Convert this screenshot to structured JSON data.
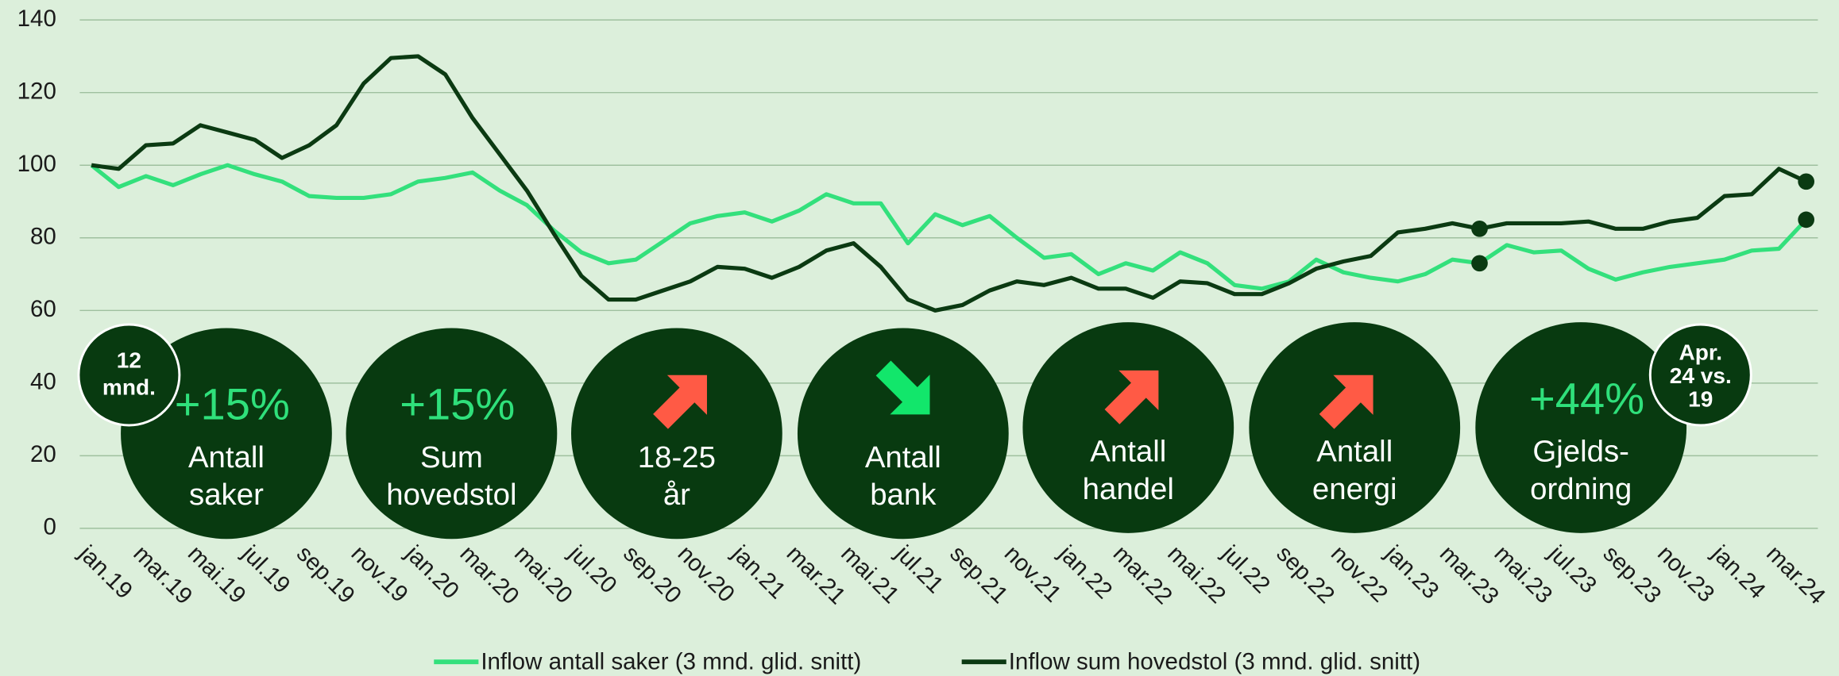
{
  "chart_data": {
    "type": "line",
    "categories": [
      "jan.19",
      null,
      "mar.19",
      null,
      "mai.19",
      null,
      "jul.19",
      null,
      "sep.19",
      null,
      "nov.19",
      null,
      "jan.20",
      null,
      "mar.20",
      null,
      "mai.20",
      null,
      "jul.20",
      null,
      "sep.20",
      null,
      "nov.20",
      null,
      "jan.21",
      null,
      "mar.21",
      null,
      "mai.21",
      null,
      "jul.21",
      null,
      "sep.21",
      null,
      "nov.21",
      null,
      "jan.22",
      null,
      "mar.22",
      null,
      "mai.22",
      null,
      "jul.22",
      null,
      "sep.22",
      null,
      "nov.22",
      null,
      "jan.23",
      null,
      "mar.23",
      null,
      "mai.23",
      null,
      "jul.23",
      null,
      "sep.23",
      null,
      "nov.23",
      null,
      "jan.24",
      null,
      "mar.24",
      null
    ],
    "series": [
      {
        "name": "Inflow antall saker (3 mnd. glid. snitt)",
        "color": "#33e07c",
        "values": [
          100,
          94,
          97,
          94.5,
          97.5,
          100,
          97.5,
          95.5,
          91.5,
          91,
          91,
          92,
          95.5,
          96.5,
          98,
          93,
          89,
          82,
          76,
          73,
          74,
          79,
          84,
          86,
          87,
          84.5,
          87.5,
          92,
          89.5,
          89.5,
          78.5,
          86.5,
          83.5,
          86,
          80,
          74.5,
          75.5,
          70,
          73,
          71,
          76,
          73,
          67,
          66,
          68,
          74,
          70.5,
          69,
          68,
          70,
          74,
          73,
          78,
          76,
          76.5,
          71.5,
          68.5,
          70.5,
          72,
          73,
          74,
          76.5,
          77,
          85
        ]
      },
      {
        "name": "Inflow sum hovedstol (3 mnd. glid. snitt)",
        "color": "#0b3a12",
        "values": [
          100,
          99,
          105.5,
          106,
          111,
          109,
          107,
          102,
          105.5,
          111,
          122.5,
          129.5,
          130,
          125,
          113,
          103,
          93,
          81,
          69.5,
          63,
          63,
          65.5,
          68,
          72,
          71.5,
          69,
          72,
          76.5,
          78.5,
          72,
          63,
          60,
          61.5,
          65.5,
          68,
          67,
          69,
          66,
          66,
          63.5,
          68,
          67.5,
          64.5,
          64.5,
          67.5,
          71.5,
          73.5,
          75,
          81.5,
          82.5,
          84,
          82.5,
          84,
          84,
          84,
          84.5,
          82.5,
          82.5,
          84.5,
          85.5,
          91.5,
          92,
          99,
          95.5
        ]
      }
    ],
    "ylim": [
      0,
      140
    ],
    "yticks": [
      0,
      20,
      40,
      60,
      80,
      100,
      120,
      140
    ],
    "grid": true,
    "callouts": [
      {
        "headline": "+15%",
        "label": [
          "Antall",
          "saker"
        ]
      },
      {
        "headline": "+15%",
        "label": [
          "Sum",
          "hovedstol"
        ]
      },
      {
        "label": [
          "18-25",
          "år"
        ]
      },
      {
        "label": [
          "Antall",
          "bank"
        ]
      },
      {
        "label": [
          "Antall",
          "handel"
        ]
      },
      {
        "label": [
          "Antall",
          "energi"
        ]
      },
      {
        "headline": "+44%",
        "label": [
          "Gjelds-",
          "ordning"
        ]
      }
    ],
    "notes": [
      [
        "12",
        "mnd."
      ],
      [
        "Apr.",
        "24 vs.",
        "19"
      ]
    ]
  }
}
